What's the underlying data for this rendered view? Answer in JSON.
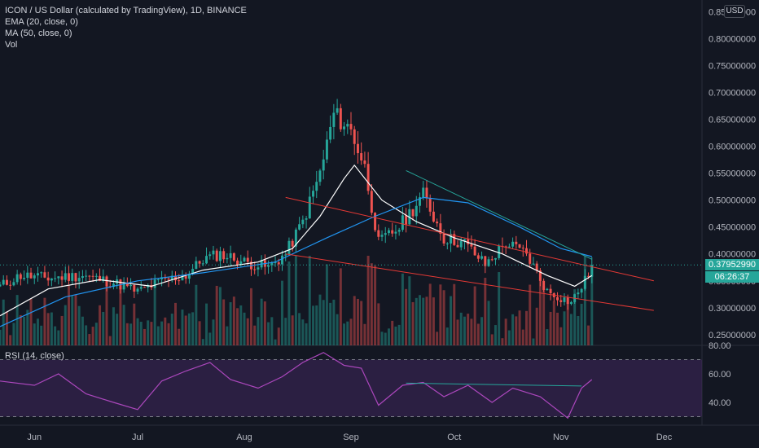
{
  "header": {
    "title": "ICON / US Dollar (calculated by TradingView), 1D, BINANCE",
    "indicators": [
      "EMA (20, close, 0)",
      "MA (50, close, 0)",
      "Vol"
    ]
  },
  "currency_badge": "USD",
  "rsi": {
    "label": "RSI (14, close)"
  },
  "price_tags": {
    "last_price": "0.37952990",
    "countdown": "06:26:37"
  },
  "colors": {
    "background": "#131722",
    "up": "#26a69a",
    "down": "#ef5350",
    "ema": "#ffffff",
    "ma": "#2196f3",
    "trendline_red": "#e53935",
    "trendline_green": "#26a69a",
    "rsi_line": "#ab47bc",
    "rsi_band": "#4a2a6b"
  },
  "chart_data": [
    {
      "type": "candlestick",
      "title": "ICON / US Dollar (calculated by TradingView), 1D, BINANCE",
      "x_tick_labels": [
        "Jun",
        "Jul",
        "Aug",
        "Sep",
        "Oct",
        "Nov",
        "Dec"
      ],
      "y_tick_labels": [
        "0.25000000",
        "0.30000000",
        "0.35000000",
        "0.40000000",
        "0.45000000",
        "0.50000000",
        "0.55000000",
        "0.60000000",
        "0.65000000",
        "0.70000000",
        "0.75000000",
        "0.80000000",
        "0.85000000"
      ],
      "ylim": [
        0.23,
        0.86
      ],
      "x_range": [
        "2021-05-22",
        "2021-12-12"
      ],
      "series": [
        {
          "name": "Price",
          "close_path": [
            [
              "2021-05-22",
              0.34
            ],
            [
              "2021-05-28",
              0.36
            ],
            [
              "2021-06-05",
              0.355
            ],
            [
              "2021-06-15",
              0.36
            ],
            [
              "2021-06-25",
              0.345
            ],
            [
              "2021-07-01",
              0.33
            ],
            [
              "2021-07-08",
              0.35
            ],
            [
              "2021-07-15",
              0.36
            ],
            [
              "2021-07-20",
              0.39
            ],
            [
              "2021-07-25",
              0.4
            ],
            [
              "2021-08-01",
              0.385
            ],
            [
              "2021-08-08",
              0.375
            ],
            [
              "2021-08-13",
              0.4
            ],
            [
              "2021-08-18",
              0.46
            ],
            [
              "2021-08-23",
              0.55
            ],
            [
              "2021-08-27",
              0.66
            ],
            [
              "2021-09-01",
              0.63
            ],
            [
              "2021-09-05",
              0.56
            ],
            [
              "2021-09-09",
              0.42
            ],
            [
              "2021-09-15",
              0.45
            ],
            [
              "2021-09-22",
              0.51
            ],
            [
              "2021-09-28",
              0.43
            ],
            [
              "2021-10-04",
              0.42
            ],
            [
              "2021-10-10",
              0.38
            ],
            [
              "2021-10-16",
              0.42
            ],
            [
              "2021-10-22",
              0.4
            ],
            [
              "2021-10-28",
              0.33
            ],
            [
              "2021-11-04",
              0.31
            ],
            [
              "2021-11-08",
              0.35
            ],
            [
              "2021-11-10",
              0.3795299
            ]
          ]
        },
        {
          "name": "EMA (20, close, 0)",
          "points": [
            [
              "2021-05-22",
              0.285
            ],
            [
              "2021-06-05",
              0.335
            ],
            [
              "2021-06-20",
              0.352
            ],
            [
              "2021-07-05",
              0.34
            ],
            [
              "2021-07-20",
              0.37
            ],
            [
              "2021-08-05",
              0.385
            ],
            [
              "2021-08-15",
              0.41
            ],
            [
              "2021-08-23",
              0.47
            ],
            [
              "2021-08-30",
              0.54
            ],
            [
              "2021-09-02",
              0.565
            ],
            [
              "2021-09-10",
              0.5
            ],
            [
              "2021-09-20",
              0.46
            ],
            [
              "2021-10-01",
              0.43
            ],
            [
              "2021-10-15",
              0.4
            ],
            [
              "2021-10-28",
              0.36
            ],
            [
              "2021-11-05",
              0.34
            ],
            [
              "2021-11-10",
              0.36
            ]
          ]
        },
        {
          "name": "MA (50, close, 0)",
          "points": [
            [
              "2021-05-22",
              0.265
            ],
            [
              "2021-06-10",
              0.32
            ],
            [
              "2021-07-01",
              0.35
            ],
            [
              "2021-07-20",
              0.365
            ],
            [
              "2021-08-10",
              0.385
            ],
            [
              "2021-08-25",
              0.43
            ],
            [
              "2021-09-08",
              0.47
            ],
            [
              "2021-09-22",
              0.505
            ],
            [
              "2021-10-05",
              0.495
            ],
            [
              "2021-10-20",
              0.45
            ],
            [
              "2021-11-01",
              0.41
            ],
            [
              "2021-11-10",
              0.395
            ]
          ]
        }
      ],
      "trendlines": [
        {
          "color": "red",
          "from": [
            "2021-08-13",
            0.505
          ],
          "to": [
            "2021-11-28",
            0.35
          ]
        },
        {
          "color": "red",
          "from": [
            "2021-08-13",
            0.4
          ],
          "to": [
            "2021-11-28",
            0.295
          ]
        },
        {
          "color": "green",
          "from": [
            "2021-09-17",
            0.555
          ],
          "to": [
            "2021-11-10",
            0.39
          ]
        }
      ],
      "current_price": 0.3795299,
      "current_price_label": "0.37952990",
      "countdown_label": "06:26:37"
    },
    {
      "type": "line",
      "title": "RSI (14, close)",
      "y_tick_labels": [
        "40.00",
        "60.00",
        "80.00"
      ],
      "ylim": [
        24,
        80
      ],
      "band": [
        30,
        70
      ],
      "points": [
        [
          "2021-05-22",
          55
        ],
        [
          "2021-06-01",
          52
        ],
        [
          "2021-06-08",
          60
        ],
        [
          "2021-06-16",
          46
        ],
        [
          "2021-06-24",
          40
        ],
        [
          "2021-07-01",
          35
        ],
        [
          "2021-07-08",
          55
        ],
        [
          "2021-07-15",
          62
        ],
        [
          "2021-07-22",
          68
        ],
        [
          "2021-07-28",
          56
        ],
        [
          "2021-08-05",
          50
        ],
        [
          "2021-08-12",
          58
        ],
        [
          "2021-08-18",
          68
        ],
        [
          "2021-08-24",
          75
        ],
        [
          "2021-08-30",
          66
        ],
        [
          "2021-09-04",
          64
        ],
        [
          "2021-09-09",
          38
        ],
        [
          "2021-09-16",
          52
        ],
        [
          "2021-09-22",
          54
        ],
        [
          "2021-09-28",
          44
        ],
        [
          "2021-10-05",
          52
        ],
        [
          "2021-10-12",
          40
        ],
        [
          "2021-10-18",
          50
        ],
        [
          "2021-10-26",
          44
        ],
        [
          "2021-11-03",
          29
        ],
        [
          "2021-11-07",
          50
        ],
        [
          "2021-11-10",
          56
        ]
      ],
      "divergence_line": {
        "from": [
          "2021-09-17",
          53.5
        ],
        "to": [
          "2021-11-07",
          51.5
        ]
      }
    }
  ]
}
